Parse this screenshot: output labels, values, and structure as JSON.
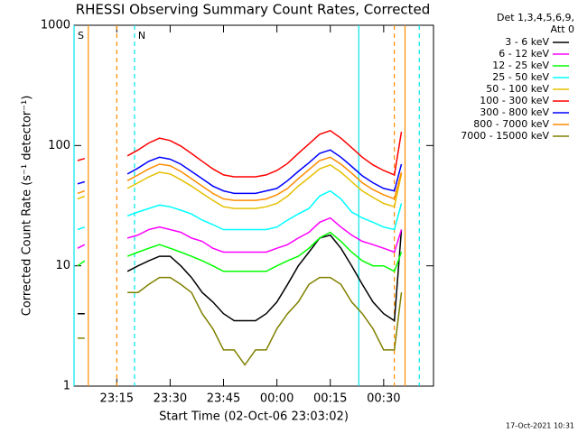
{
  "chart_data": {
    "type": "line",
    "title": "RHESSI Observing Summary Count Rates, Corrected",
    "x_label": "Start Time (02-Oct-06 23:03:02)",
    "y_label": "Corrected Count Rate (s⁻¹ detector⁻¹)",
    "legend_title": [
      "Det 1,3,4,5,6,9,",
      "Att 0"
    ],
    "footer": "17-Oct-2021 10:31",
    "log_y": true,
    "xlim": [
      "23:03",
      "00:44"
    ],
    "xticks": [
      "23:15",
      "23:30",
      "23:45",
      "00:00",
      "00:15",
      "00:30"
    ],
    "ylim": [
      1,
      1000
    ],
    "yticks": [
      1,
      10,
      100,
      1000
    ],
    "x": [
      "23:04",
      "23:06",
      "23:12",
      "23:18",
      "23:21",
      "23:24",
      "23:27",
      "23:30",
      "23:33",
      "23:36",
      "23:39",
      "23:42",
      "23:45",
      "23:48",
      "23:51",
      "23:54",
      "23:57",
      "00:00",
      "00:03",
      "00:06",
      "00:09",
      "00:12",
      "00:15",
      "00:18",
      "00:21",
      "00:24",
      "00:27",
      "00:30",
      "00:33",
      "00:35"
    ],
    "markers": [
      {
        "x": "23:03",
        "color": "#00e5ee",
        "style": "solid"
      },
      {
        "x": "23:07",
        "color": "#ff8c00",
        "style": "solid"
      },
      {
        "x": "23:15",
        "color": "#ff8c00",
        "style": "dashed"
      },
      {
        "x": "23:20",
        "color": "#00e5ee",
        "style": "dashed"
      },
      {
        "x": "00:23",
        "color": "#00e5ee",
        "style": "solid"
      },
      {
        "x": "00:33",
        "color": "#ff8c00",
        "style": "dashed"
      },
      {
        "x": "00:36",
        "color": "#ff8c00",
        "style": "solid"
      },
      {
        "x": "00:40",
        "color": "#00e5ee",
        "style": "dashed"
      }
    ],
    "annotations": [
      {
        "text": "S",
        "x": "23:04",
        "color": "#ff8c00"
      },
      {
        "text": "N",
        "x": "23:21",
        "color": "#00e5ee"
      }
    ],
    "series": [
      {
        "name": "3 - 6 keV",
        "color": "#000000",
        "values": [
          4,
          4,
          null,
          9,
          10,
          11,
          12,
          12,
          10,
          8,
          6,
          5,
          4,
          3.5,
          3.5,
          3.5,
          4,
          5,
          7,
          10,
          13,
          17,
          18,
          14,
          10,
          7,
          5,
          4,
          3.5,
          20
        ]
      },
      {
        "name": "6 - 12 keV",
        "color": "#ff00ff",
        "values": [
          14,
          15,
          null,
          17,
          18,
          20,
          21,
          20,
          19,
          17,
          16,
          14,
          13,
          13,
          13,
          13,
          13,
          14,
          15,
          17,
          19,
          23,
          25,
          21,
          18,
          16,
          15,
          14,
          13,
          20
        ]
      },
      {
        "name": "12 - 25 keV",
        "color": "#00ff00",
        "values": [
          10,
          11,
          null,
          12,
          13,
          14,
          15,
          14,
          13,
          12,
          11,
          10,
          9,
          9,
          9,
          9,
          9,
          10,
          11,
          12,
          14,
          17,
          19,
          16,
          13,
          11,
          10,
          10,
          9,
          13
        ]
      },
      {
        "name": "25 - 50 keV",
        "color": "#00ffff",
        "values": [
          20,
          21,
          null,
          26,
          28,
          30,
          32,
          31,
          29,
          27,
          24,
          22,
          20,
          20,
          20,
          20,
          20,
          21,
          24,
          27,
          30,
          38,
          42,
          36,
          28,
          25,
          23,
          21,
          20,
          33
        ]
      },
      {
        "name": "50 - 100 keV",
        "color": "#e6c000",
        "values": [
          36,
          38,
          null,
          44,
          49,
          55,
          60,
          58,
          52,
          46,
          40,
          35,
          31,
          30,
          30,
          30,
          31,
          33,
          38,
          46,
          54,
          64,
          69,
          60,
          50,
          42,
          37,
          33,
          31,
          58
        ]
      },
      {
        "name": "100 - 300 keV",
        "color": "#ff0000",
        "values": [
          75,
          78,
          null,
          82,
          92,
          105,
          115,
          110,
          99,
          86,
          74,
          64,
          57,
          55,
          55,
          55,
          57,
          62,
          71,
          86,
          103,
          124,
          133,
          115,
          96,
          80,
          69,
          62,
          57,
          130
        ]
      },
      {
        "name": "300 - 800 keV",
        "color": "#0000ff",
        "values": [
          48,
          50,
          null,
          58,
          65,
          74,
          80,
          77,
          70,
          61,
          53,
          46,
          42,
          40,
          40,
          40,
          42,
          44,
          51,
          61,
          72,
          86,
          92,
          80,
          67,
          56,
          49,
          44,
          42,
          70
        ]
      },
      {
        "name": "800 - 7000 keV",
        "color": "#ff8c00",
        "values": [
          40,
          42,
          null,
          51,
          57,
          64,
          70,
          68,
          61,
          53,
          46,
          40,
          36,
          35,
          35,
          35,
          36,
          39,
          44,
          53,
          63,
          75,
          80,
          70,
          59,
          49,
          43,
          39,
          36,
          60
        ]
      },
      {
        "name": "7000 - 15000 keV",
        "color": "#808000",
        "values": [
          2.5,
          2.5,
          null,
          6,
          6,
          7,
          8,
          8,
          7,
          6,
          4,
          3,
          2,
          2,
          1.5,
          2,
          2,
          3,
          4,
          5,
          7,
          8,
          8,
          7,
          5,
          4,
          3,
          2,
          2,
          6
        ]
      }
    ]
  }
}
